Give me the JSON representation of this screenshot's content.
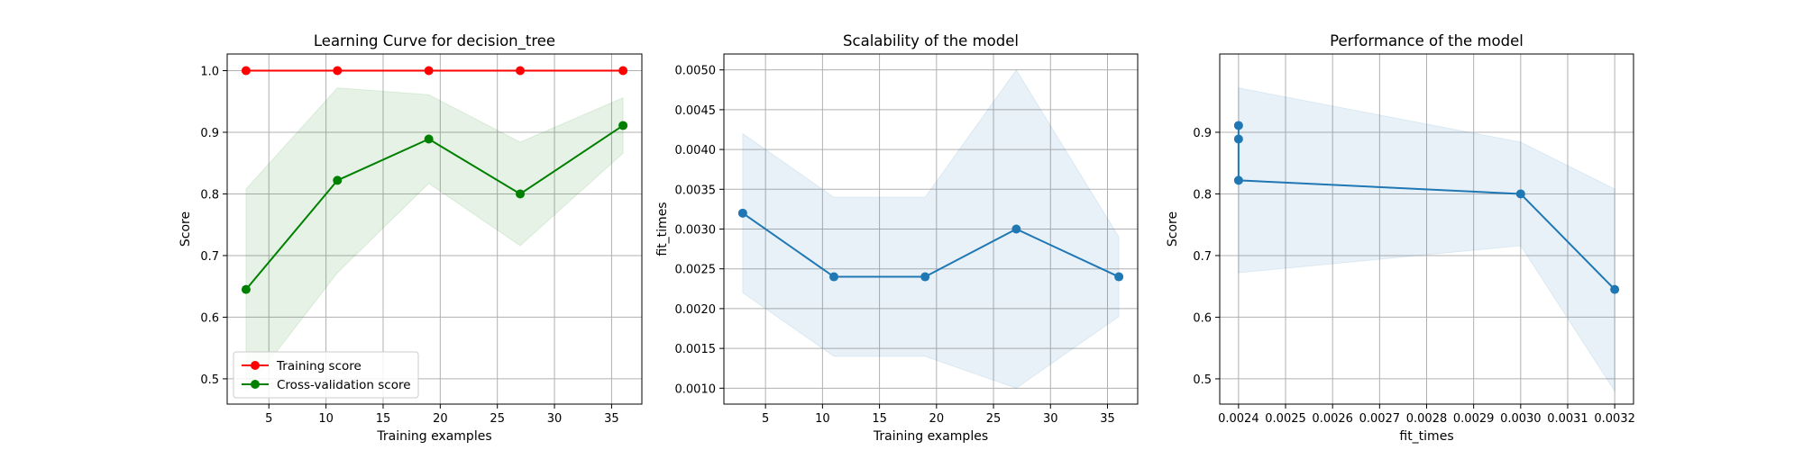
{
  "chart_data": [
    {
      "type": "line",
      "title": "Learning Curve for decision_tree",
      "xlabel": "Training examples",
      "ylabel": "Score",
      "xlim": [
        1.35,
        37.65
      ],
      "ylim": [
        0.459,
        1.027
      ],
      "xticks": [
        5,
        10,
        15,
        20,
        25,
        30,
        35
      ],
      "yticks": [
        0.5,
        0.6,
        0.7,
        0.8,
        0.9,
        1.0
      ],
      "xtick_labels": [
        "5",
        "10",
        "15",
        "20",
        "25",
        "30",
        "35"
      ],
      "ytick_labels": [
        "0.5",
        "0.6",
        "0.7",
        "0.8",
        "0.9",
        "1.0"
      ],
      "grid": true,
      "legend": "lower left",
      "x": [
        3,
        11,
        19,
        27,
        36
      ],
      "series": [
        {
          "name": "Training score",
          "color": "#ff0000",
          "values": [
            1.0,
            1.0,
            1.0,
            1.0,
            1.0
          ],
          "band_low": [
            1.0,
            1.0,
            1.0,
            1.0,
            1.0
          ],
          "band_high": [
            1.0,
            1.0,
            1.0,
            1.0,
            1.0
          ],
          "band_color": "#ff0000"
        },
        {
          "name": "Cross-validation score",
          "color": "#008000",
          "values": [
            0.645,
            0.822,
            0.889,
            0.8,
            0.911
          ],
          "band_low": [
            0.48,
            0.672,
            0.817,
            0.716,
            0.866
          ],
          "band_high": [
            0.808,
            0.972,
            0.961,
            0.884,
            0.956
          ],
          "band_color": "#008000"
        }
      ]
    },
    {
      "type": "line",
      "title": "Scalability of the model",
      "xlabel": "Training examples",
      "ylabel": "fit_times",
      "xlim": [
        1.35,
        37.65
      ],
      "ylim": [
        0.0008,
        0.0052
      ],
      "xticks": [
        5,
        10,
        15,
        20,
        25,
        30,
        35
      ],
      "yticks": [
        0.001,
        0.0015,
        0.002,
        0.0025,
        0.003,
        0.0035,
        0.004,
        0.0045,
        0.005
      ],
      "xtick_labels": [
        "5",
        "10",
        "15",
        "20",
        "25",
        "30",
        "35"
      ],
      "ytick_labels": [
        "0.0010",
        "0.0015",
        "0.0020",
        "0.0025",
        "0.0030",
        "0.0035",
        "0.0040",
        "0.0045",
        "0.0050"
      ],
      "grid": true,
      "x": [
        3,
        11,
        19,
        27,
        36
      ],
      "series": [
        {
          "name": "",
          "color": "#1f77b4",
          "values": [
            0.0032,
            0.0024,
            0.0024,
            0.003,
            0.0024
          ],
          "band_low": [
            0.0022,
            0.0014,
            0.0014,
            0.001,
            0.0019
          ],
          "band_high": [
            0.0042,
            0.0034,
            0.0034,
            0.005,
            0.0029
          ],
          "band_color": "#1f77b4"
        }
      ]
    },
    {
      "type": "line",
      "title": "Performance of the model",
      "xlabel": "fit_times",
      "ylabel": "Score",
      "xlim": [
        0.00236,
        0.00324
      ],
      "ylim": [
        0.459,
        1.027
      ],
      "xticks": [
        0.0024,
        0.0025,
        0.0026,
        0.0027,
        0.0028,
        0.0029,
        0.003,
        0.0031,
        0.0032
      ],
      "yticks": [
        0.5,
        0.6,
        0.7,
        0.8,
        0.9
      ],
      "xtick_labels": [
        "0.0024",
        "0.0025",
        "0.0026",
        "0.0027",
        "0.0028",
        "0.0029",
        "0.0030",
        "0.0031",
        "0.0032"
      ],
      "ytick_labels": [
        "0.5",
        "0.6",
        "0.7",
        "0.8",
        "0.9"
      ],
      "grid": true,
      "series": [
        {
          "name": "",
          "color": "#1f77b4",
          "x": [
            0.0024,
            0.0024,
            0.0024,
            0.003,
            0.0032
          ],
          "values": [
            0.911,
            0.889,
            0.822,
            0.8,
            0.645
          ],
          "band_x": [
            0.0024,
            0.0024,
            0.0024,
            0.003,
            0.0032
          ],
          "band_low": [
            0.866,
            0.817,
            0.672,
            0.716,
            0.48
          ],
          "band_high": [
            0.956,
            0.961,
            0.972,
            0.884,
            0.808
          ],
          "band_color": "#1f77b4"
        }
      ]
    }
  ]
}
